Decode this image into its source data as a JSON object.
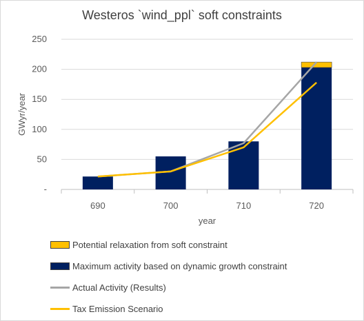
{
  "chart_data": {
    "type": "bar",
    "title": "Westeros `wind_ppl` soft constraints",
    "xlabel": "year",
    "ylabel": "GWyr/year",
    "categories": [
      "690",
      "700",
      "710",
      "720"
    ],
    "ylim": [
      0,
      250
    ],
    "yticks": [
      "-",
      "50",
      "100",
      "150",
      "200",
      "250"
    ],
    "grid": true,
    "legend_position": "bottom",
    "series": [
      {
        "name": "Potential relaxation from soft constraint",
        "kind": "bar-stacked",
        "color": "#ffc000",
        "values": [
          0,
          0,
          0,
          9
        ]
      },
      {
        "name": "Maximum activity based on dynamic growth constraint",
        "kind": "bar",
        "color": "#002060",
        "values": [
          21.5,
          55,
          80,
          203
        ]
      },
      {
        "name": "Actual Activity (Results)",
        "kind": "line",
        "color": "#a6a6a6",
        "values": [
          21.5,
          30,
          77,
          212
        ]
      },
      {
        "name": "Tax Emission Scenario",
        "kind": "line",
        "color": "#ffc000",
        "values": [
          21.5,
          30,
          70,
          178
        ]
      }
    ]
  }
}
